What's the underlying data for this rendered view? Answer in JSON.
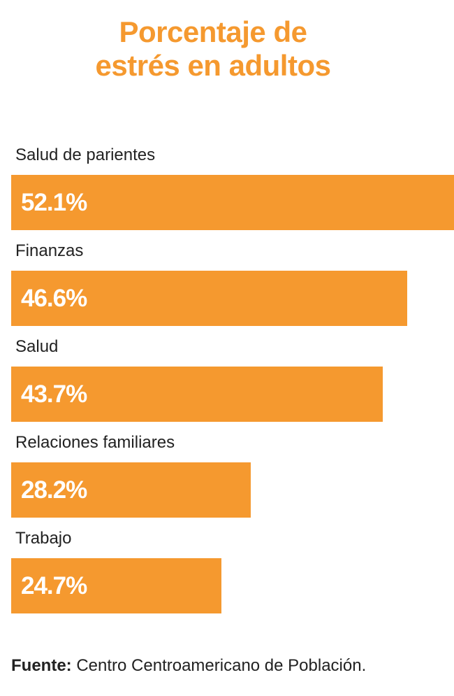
{
  "chart_data": {
    "type": "bar",
    "orientation": "horizontal",
    "title_lines": [
      "Porcentaje de",
      "estrés en adultos"
    ],
    "categories": [
      "Salud de parientes",
      "Finanzas",
      "Salud",
      "Relaciones familiares",
      "Trabajo"
    ],
    "values": [
      52.1,
      46.6,
      43.7,
      28.2,
      24.7
    ],
    "value_labels": [
      "52.1%",
      "46.6%",
      "43.7%",
      "28.2%",
      "24.7%"
    ],
    "xlim": [
      0,
      52.1
    ],
    "grid": false,
    "legend": "none",
    "bar_color": "#f5992f"
  },
  "source": {
    "label": "Fuente:",
    "text": "Centro Centroamericano de Población."
  }
}
